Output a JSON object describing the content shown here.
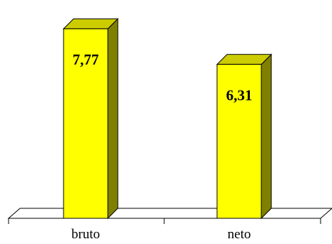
{
  "chart_data": {
    "type": "bar",
    "categories": [
      "bruto",
      "neto"
    ],
    "values": [
      7.77,
      6.31
    ],
    "value_labels": [
      "7,77",
      "6,31"
    ],
    "title": "",
    "xlabel": "",
    "ylabel": "",
    "ylim": [
      0,
      8.6
    ],
    "grid": false,
    "legend": "none",
    "style": "3d-column"
  },
  "colors": {
    "bar_front": "#ffff00",
    "bar_side": "#808000",
    "bar_top": "#cccc00",
    "floor": "#ffffff",
    "stroke": "#000000"
  }
}
